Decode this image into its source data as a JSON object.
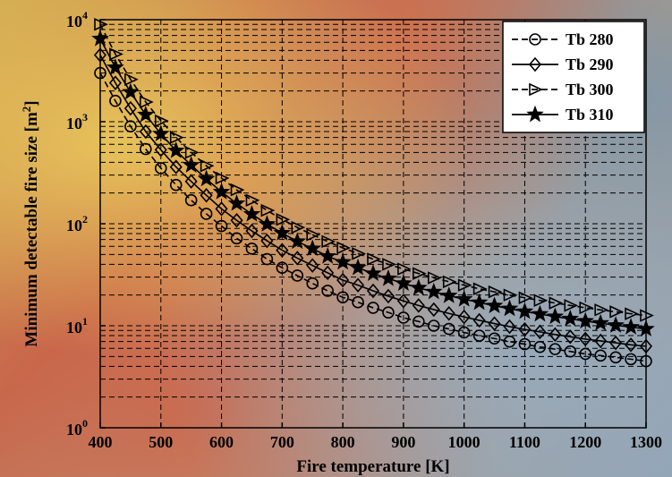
{
  "chart_data": {
    "type": "line",
    "xlabel": "Fire temperature [K]",
    "ylabel": "Minimum detectable fire size [m",
    "ylabel_sup": "2",
    "ylabel_close": "]",
    "xlim": [
      400,
      1300
    ],
    "ylim": [
      1,
      10000
    ],
    "yscale": "log",
    "grid": true,
    "legend_position": "top-right",
    "x_ticks": [
      "400",
      "500",
      "600",
      "700",
      "800",
      "900",
      "1000",
      "1100",
      "1200",
      "1300"
    ],
    "y_ticks": [
      {
        "base": "10",
        "exp": "0"
      },
      {
        "base": "10",
        "exp": "1"
      },
      {
        "base": "10",
        "exp": "2"
      },
      {
        "base": "10",
        "exp": "3"
      },
      {
        "base": "10",
        "exp": "4"
      }
    ],
    "x": [
      400,
      425,
      450,
      475,
      500,
      525,
      550,
      575,
      600,
      625,
      650,
      675,
      700,
      725,
      750,
      775,
      800,
      825,
      850,
      875,
      900,
      925,
      950,
      975,
      1000,
      1025,
      1050,
      1075,
      1100,
      1125,
      1150,
      1175,
      1200,
      1225,
      1250,
      1275,
      1300
    ],
    "series": [
      {
        "name": "Tb 280",
        "line": "dashed",
        "marker": "circle",
        "values": [
          3000,
          1600,
          900,
          540,
          350,
          240,
          170,
          125,
          95,
          72,
          57,
          45,
          37,
          31,
          26,
          22,
          19,
          17,
          15,
          13.5,
          12,
          11,
          10,
          9.3,
          8.6,
          8,
          7.5,
          7,
          6.6,
          6.2,
          5.9,
          5.6,
          5.3,
          5.1,
          4.9,
          4.7,
          4.5
        ]
      },
      {
        "name": "Tb 290",
        "line": "solid",
        "marker": "diamond",
        "values": [
          4500,
          2400,
          1350,
          800,
          530,
          360,
          260,
          190,
          140,
          108,
          85,
          68,
          55,
          46,
          39,
          33,
          28,
          25,
          22,
          19.5,
          17.5,
          15.8,
          14.4,
          13.2,
          12.2,
          11.3,
          10.5,
          9.8,
          9.2,
          8.7,
          8.2,
          7.8,
          7.4,
          7.1,
          6.8,
          6.5,
          6.3
        ]
      },
      {
        "name": "Tb 300",
        "line": "dashed",
        "marker": "triangle-right",
        "values": [
          9000,
          4600,
          2600,
          1560,
          1020,
          700,
          500,
          370,
          280,
          215,
          170,
          135,
          110,
          92,
          78,
          67,
          58,
          51,
          45,
          40,
          36,
          32.5,
          29.5,
          27,
          25,
          23,
          21.5,
          20,
          18.8,
          17.7,
          16.7,
          15.8,
          15,
          14.3,
          13.7,
          13.1,
          12.6
        ]
      },
      {
        "name": "Tb 310",
        "line": "solid",
        "marker": "star",
        "values": [
          6500,
          3400,
          1950,
          1170,
          760,
          520,
          375,
          275,
          205,
          158,
          124,
          99,
          81,
          67,
          57,
          48,
          42,
          37,
          32.5,
          29,
          26,
          23.5,
          21.5,
          19.7,
          18.2,
          16.9,
          15.7,
          14.7,
          13.8,
          13,
          12.3,
          11.7,
          11.1,
          10.6,
          10.1,
          9.7,
          9.3
        ]
      }
    ]
  }
}
